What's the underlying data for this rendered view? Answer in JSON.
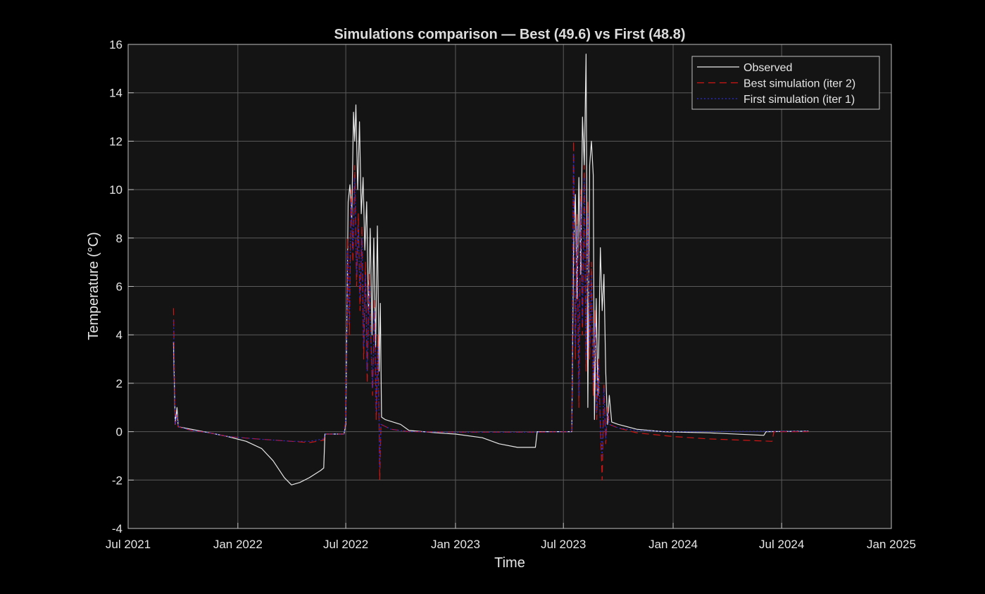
{
  "chart_data": {
    "type": "line",
    "title": "Simulations comparison — Best (49.6) vs First (48.8)",
    "xlabel": "Time",
    "ylabel": "Temperature (°C)",
    "xlim": [
      "2021-07-01",
      "2025-01-01"
    ],
    "ylim": [
      -4,
      16
    ],
    "x_ticks": [
      {
        "date": "2021-07-01",
        "label": "Jul 2021"
      },
      {
        "date": "2022-01-01",
        "label": "Jan 2022"
      },
      {
        "date": "2022-07-01",
        "label": "Jul 2022"
      },
      {
        "date": "2023-01-01",
        "label": "Jan 2023"
      },
      {
        "date": "2023-07-01",
        "label": "Jul 2023"
      },
      {
        "date": "2024-01-01",
        "label": "Jan 2024"
      },
      {
        "date": "2024-07-01",
        "label": "Jul 2024"
      },
      {
        "date": "2025-01-01",
        "label": "Jan 2025"
      }
    ],
    "y_ticks": [
      -4,
      -2,
      0,
      2,
      4,
      6,
      8,
      10,
      12,
      14,
      16
    ],
    "grid": true,
    "legend_position": "top-right",
    "background": "#141414",
    "series": [
      {
        "name": "Observed",
        "color": "#e8e8e8",
        "style": "solid",
        "points": [
          [
            "2021-09-15",
            3.7
          ],
          [
            "2021-09-18",
            0.3
          ],
          [
            "2021-09-21",
            1.0
          ],
          [
            "2021-09-23",
            0.2
          ],
          [
            "2021-10-15",
            0.1
          ],
          [
            "2021-11-15",
            -0.05
          ],
          [
            "2021-12-15",
            -0.2
          ],
          [
            "2022-01-15",
            -0.4
          ],
          [
            "2022-02-10",
            -0.7
          ],
          [
            "2022-03-01",
            -1.2
          ],
          [
            "2022-03-20",
            -1.9
          ],
          [
            "2022-04-01",
            -2.2
          ],
          [
            "2022-04-15",
            -2.1
          ],
          [
            "2022-05-01",
            -1.9
          ],
          [
            "2022-05-20",
            -1.6
          ],
          [
            "2022-05-25",
            -1.5
          ],
          [
            "2022-05-27",
            -0.1
          ],
          [
            "2022-06-28",
            -0.1
          ],
          [
            "2022-07-01",
            0.3
          ],
          [
            "2022-07-05",
            9.5
          ],
          [
            "2022-07-08",
            10.2
          ],
          [
            "2022-07-11",
            8.8
          ],
          [
            "2022-07-14",
            13.2
          ],
          [
            "2022-07-16",
            12.0
          ],
          [
            "2022-07-18",
            13.5
          ],
          [
            "2022-07-21",
            10.0
          ],
          [
            "2022-07-24",
            12.8
          ],
          [
            "2022-07-27",
            9.0
          ],
          [
            "2022-07-30",
            10.5
          ],
          [
            "2022-08-02",
            7.5
          ],
          [
            "2022-08-05",
            9.5
          ],
          [
            "2022-08-08",
            5.0
          ],
          [
            "2022-08-11",
            8.4
          ],
          [
            "2022-08-14",
            4.0
          ],
          [
            "2022-08-17",
            8.0
          ],
          [
            "2022-08-20",
            3.5
          ],
          [
            "2022-08-23",
            8.5
          ],
          [
            "2022-08-26",
            2.5
          ],
          [
            "2022-08-28",
            5.3
          ],
          [
            "2022-08-30",
            0.6
          ],
          [
            "2022-09-05",
            0.5
          ],
          [
            "2022-10-01",
            0.3
          ],
          [
            "2022-10-15",
            0.05
          ],
          [
            "2022-12-01",
            -0.05
          ],
          [
            "2023-01-01",
            -0.1
          ],
          [
            "2023-02-15",
            -0.25
          ],
          [
            "2023-03-15",
            -0.5
          ],
          [
            "2023-04-15",
            -0.65
          ],
          [
            "2023-05-15",
            -0.65
          ],
          [
            "2023-05-18",
            0.0
          ],
          [
            "2023-07-15",
            0.0
          ],
          [
            "2023-07-18",
            7.5
          ],
          [
            "2023-07-21",
            9.8
          ],
          [
            "2023-07-24",
            5.5
          ],
          [
            "2023-07-27",
            10.5
          ],
          [
            "2023-07-30",
            6.5
          ],
          [
            "2023-08-02",
            13.0
          ],
          [
            "2023-08-05",
            11.0
          ],
          [
            "2023-08-08",
            15.6
          ],
          [
            "2023-08-11",
            1.0
          ],
          [
            "2023-08-14",
            11.0
          ],
          [
            "2023-08-17",
            12.0
          ],
          [
            "2023-08-20",
            10.6
          ],
          [
            "2023-08-22",
            0.5
          ],
          [
            "2023-08-25",
            5.5
          ],
          [
            "2023-08-28",
            1.5
          ],
          [
            "2023-09-01",
            7.6
          ],
          [
            "2023-09-04",
            5.0
          ],
          [
            "2023-09-07",
            6.5
          ],
          [
            "2023-09-10",
            2.5
          ],
          [
            "2023-09-13",
            0.3
          ],
          [
            "2023-09-16",
            1.5
          ],
          [
            "2023-09-20",
            0.4
          ],
          [
            "2023-10-01",
            0.3
          ],
          [
            "2023-11-01",
            0.1
          ],
          [
            "2023-12-15",
            0.0
          ],
          [
            "2024-03-01",
            -0.05
          ],
          [
            "2024-06-01",
            -0.15
          ],
          [
            "2024-06-05",
            0.0
          ],
          [
            "2024-08-15",
            0.02
          ]
        ]
      },
      {
        "name": "Best simulation (iter 2)",
        "color": "#d01515",
        "style": "dashed",
        "points": [
          [
            "2021-09-15",
            5.1
          ],
          [
            "2021-09-18",
            0.3
          ],
          [
            "2021-09-21",
            0.7
          ],
          [
            "2021-09-23",
            0.2
          ],
          [
            "2021-10-15",
            0.05
          ],
          [
            "2021-11-15",
            -0.05
          ],
          [
            "2021-12-15",
            -0.2
          ],
          [
            "2022-02-01",
            -0.3
          ],
          [
            "2022-04-01",
            -0.4
          ],
          [
            "2022-05-01",
            -0.45
          ],
          [
            "2022-05-25",
            -0.35
          ],
          [
            "2022-05-27",
            -0.1
          ],
          [
            "2022-06-28",
            -0.1
          ],
          [
            "2022-07-01",
            0.5
          ],
          [
            "2022-07-04",
            8.0
          ],
          [
            "2022-07-07",
            4.0
          ],
          [
            "2022-07-10",
            10.0
          ],
          [
            "2022-07-13",
            7.0
          ],
          [
            "2022-07-16",
            11.0
          ],
          [
            "2022-07-19",
            6.0
          ],
          [
            "2022-07-22",
            9.0
          ],
          [
            "2022-07-25",
            5.0
          ],
          [
            "2022-07-28",
            8.5
          ],
          [
            "2022-07-31",
            3.0
          ],
          [
            "2022-08-03",
            7.0
          ],
          [
            "2022-08-06",
            2.0
          ],
          [
            "2022-08-09",
            6.5
          ],
          [
            "2022-08-12",
            4.0
          ],
          [
            "2022-08-15",
            1.5
          ],
          [
            "2022-08-18",
            5.5
          ],
          [
            "2022-08-21",
            0.5
          ],
          [
            "2022-08-24",
            4.0
          ],
          [
            "2022-08-27",
            -2.0
          ],
          [
            "2022-08-29",
            0.3
          ],
          [
            "2022-09-15",
            0.1
          ],
          [
            "2022-10-15",
            0.0
          ],
          [
            "2023-01-01",
            -0.02
          ],
          [
            "2023-05-15",
            -0.02
          ],
          [
            "2023-07-15",
            0.0
          ],
          [
            "2023-07-18",
            12.0
          ],
          [
            "2023-07-21",
            3.0
          ],
          [
            "2023-07-24",
            9.0
          ],
          [
            "2023-07-27",
            1.0
          ],
          [
            "2023-07-30",
            10.0
          ],
          [
            "2023-08-02",
            4.0
          ],
          [
            "2023-08-05",
            11.0
          ],
          [
            "2023-08-08",
            2.5
          ],
          [
            "2023-08-11",
            9.5
          ],
          [
            "2023-08-14",
            3.0
          ],
          [
            "2023-08-17",
            7.0
          ],
          [
            "2023-08-20",
            1.5
          ],
          [
            "2023-08-23",
            5.0
          ],
          [
            "2023-08-26",
            0.5
          ],
          [
            "2023-08-29",
            3.0
          ],
          [
            "2023-09-01",
            0.2
          ],
          [
            "2023-09-04",
            -2.0
          ],
          [
            "2023-09-07",
            2.0
          ],
          [
            "2023-09-10",
            -0.5
          ],
          [
            "2023-09-13",
            1.0
          ],
          [
            "2023-09-16",
            0.3
          ],
          [
            "2023-10-01",
            0.15
          ],
          [
            "2023-11-01",
            -0.05
          ],
          [
            "2024-01-01",
            -0.2
          ],
          [
            "2024-03-01",
            -0.3
          ],
          [
            "2024-06-15",
            -0.4
          ],
          [
            "2024-06-18",
            0.0
          ],
          [
            "2024-08-15",
            0.0
          ]
        ]
      },
      {
        "name": "First simulation (iter 1)",
        "color": "#2a2ad8",
        "style": "dotted",
        "points": [
          [
            "2021-09-15",
            4.6
          ],
          [
            "2021-09-18",
            0.3
          ],
          [
            "2021-09-21",
            0.7
          ],
          [
            "2021-09-23",
            0.2
          ],
          [
            "2021-10-15",
            0.05
          ],
          [
            "2021-11-15",
            -0.05
          ],
          [
            "2021-12-15",
            -0.2
          ],
          [
            "2022-02-01",
            -0.3
          ],
          [
            "2022-04-01",
            -0.4
          ],
          [
            "2022-05-01",
            -0.4
          ],
          [
            "2022-05-25",
            -0.3
          ],
          [
            "2022-05-27",
            -0.1
          ],
          [
            "2022-06-28",
            -0.1
          ],
          [
            "2022-07-01",
            0.5
          ],
          [
            "2022-07-04",
            7.5
          ],
          [
            "2022-07-07",
            4.5
          ],
          [
            "2022-07-10",
            9.5
          ],
          [
            "2022-07-13",
            7.5
          ],
          [
            "2022-07-16",
            10.5
          ],
          [
            "2022-07-19",
            6.5
          ],
          [
            "2022-07-22",
            8.5
          ],
          [
            "2022-07-25",
            5.5
          ],
          [
            "2022-07-28",
            8.0
          ],
          [
            "2022-07-31",
            3.5
          ],
          [
            "2022-08-03",
            6.5
          ],
          [
            "2022-08-06",
            2.5
          ],
          [
            "2022-08-09",
            6.0
          ],
          [
            "2022-08-12",
            4.0
          ],
          [
            "2022-08-15",
            1.8
          ],
          [
            "2022-08-18",
            5.0
          ],
          [
            "2022-08-21",
            0.8
          ],
          [
            "2022-08-24",
            3.5
          ],
          [
            "2022-08-27",
            -1.5
          ],
          [
            "2022-08-29",
            0.3
          ],
          [
            "2022-09-15",
            0.1
          ],
          [
            "2022-10-15",
            0.0
          ],
          [
            "2023-01-01",
            -0.02
          ],
          [
            "2023-05-15",
            -0.02
          ],
          [
            "2023-07-15",
            0.0
          ],
          [
            "2023-07-18",
            11.5
          ],
          [
            "2023-07-21",
            3.5
          ],
          [
            "2023-07-24",
            8.5
          ],
          [
            "2023-07-27",
            1.5
          ],
          [
            "2023-07-30",
            9.5
          ],
          [
            "2023-08-02",
            4.5
          ],
          [
            "2023-08-05",
            10.5
          ],
          [
            "2023-08-08",
            3.0
          ],
          [
            "2023-08-11",
            9.0
          ],
          [
            "2023-08-14",
            3.5
          ],
          [
            "2023-08-17",
            6.5
          ],
          [
            "2023-08-20",
            2.0
          ],
          [
            "2023-08-23",
            4.5
          ],
          [
            "2023-08-26",
            0.8
          ],
          [
            "2023-08-29",
            2.8
          ],
          [
            "2023-09-01",
            0.3
          ],
          [
            "2023-09-04",
            -1.0
          ],
          [
            "2023-09-07",
            1.8
          ],
          [
            "2023-09-10",
            -0.3
          ],
          [
            "2023-09-13",
            0.8
          ],
          [
            "2023-09-16",
            0.3
          ],
          [
            "2023-10-01",
            0.15
          ],
          [
            "2023-11-01",
            0.05
          ],
          [
            "2024-01-01",
            0.0
          ],
          [
            "2024-08-15",
            0.02
          ]
        ]
      }
    ]
  }
}
